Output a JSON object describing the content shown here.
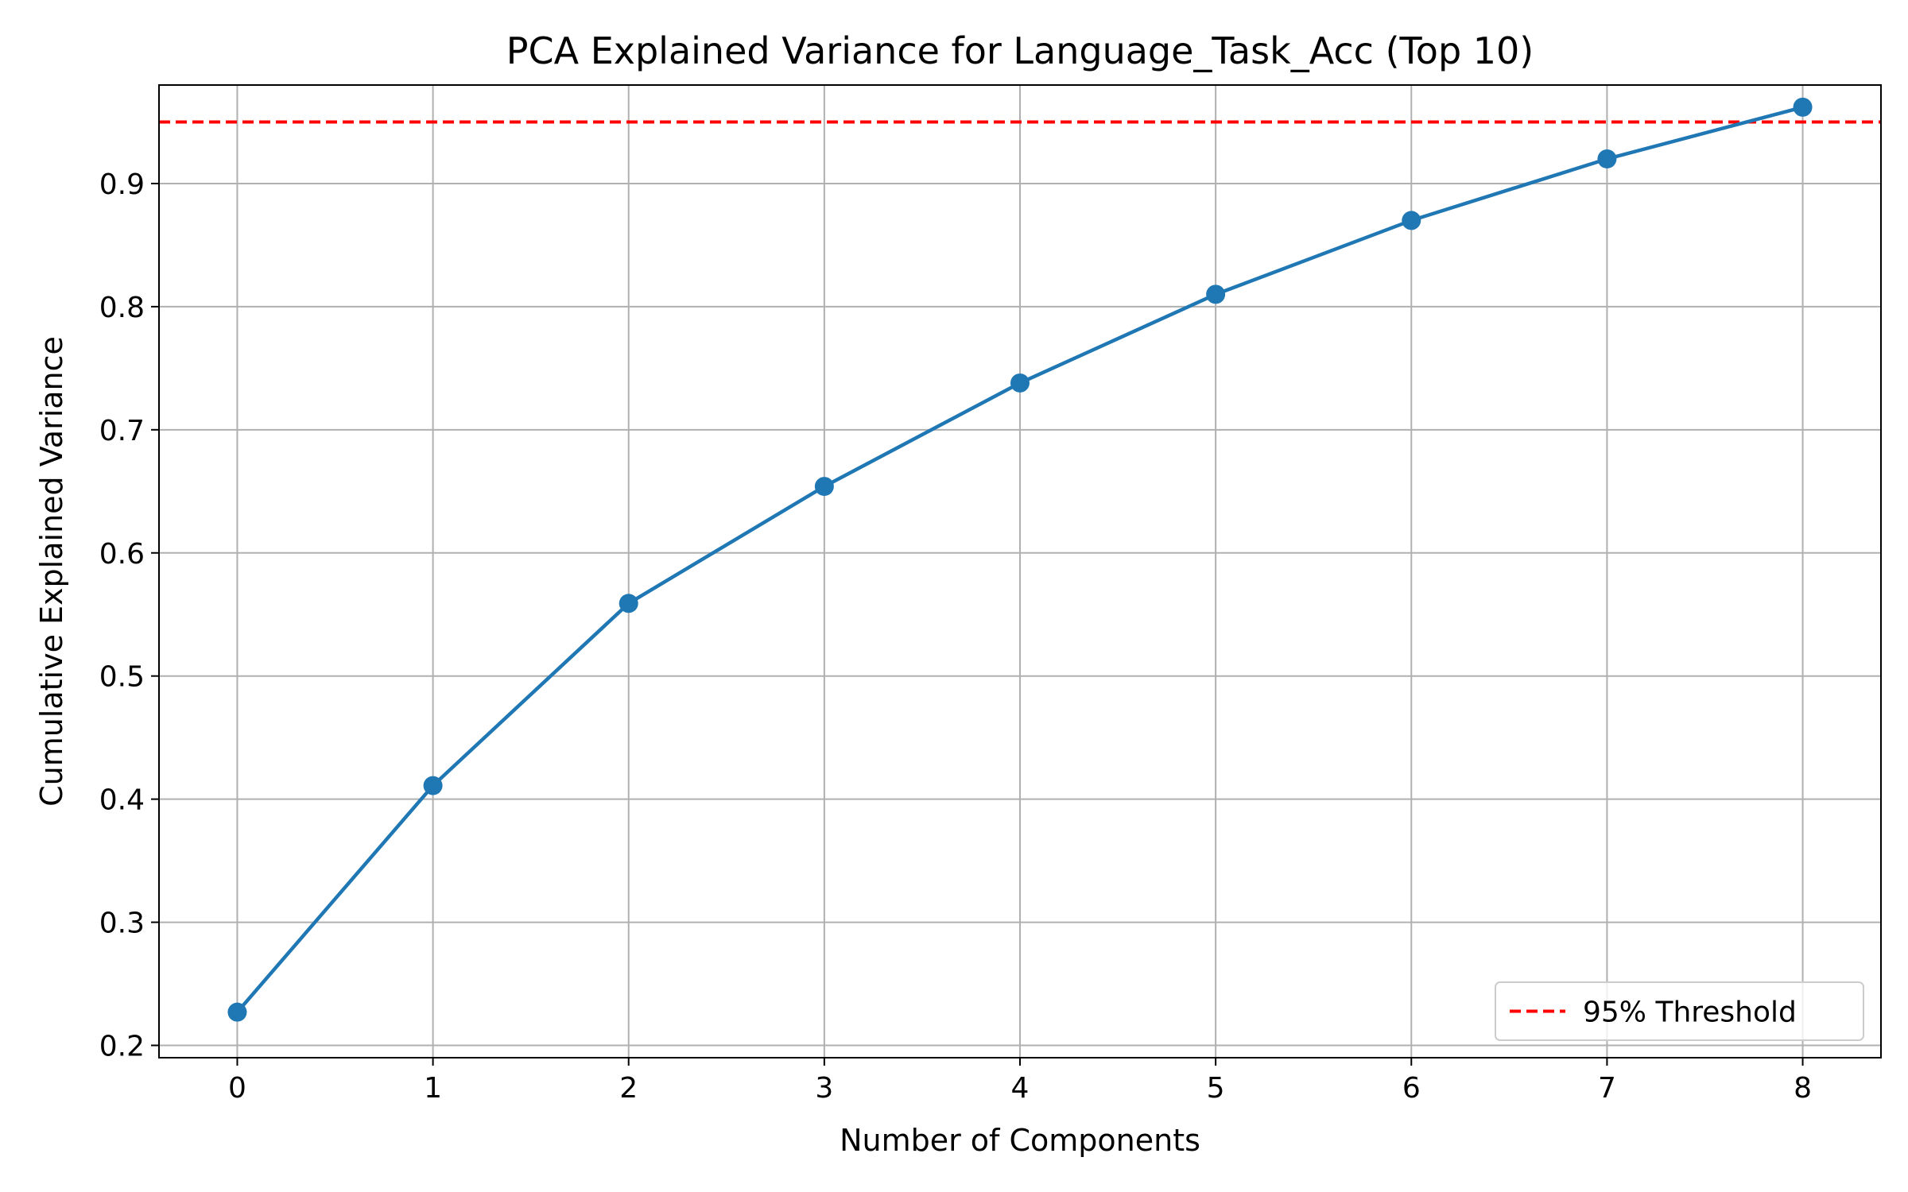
{
  "chart_data": {
    "type": "line",
    "title": "PCA Explained Variance for Language_Task_Acc (Top 10)",
    "xlabel": "Number of Components",
    "ylabel": "Cumulative Explained Variance",
    "x": [
      0,
      1,
      2,
      3,
      4,
      5,
      6,
      7,
      8
    ],
    "xlim": [
      -0.4,
      8.4
    ],
    "ylim": [
      0.19,
      0.98
    ],
    "xticks": [
      "0",
      "1",
      "2",
      "3",
      "4",
      "5",
      "6",
      "7",
      "8"
    ],
    "yticks": [
      "0.2",
      "0.3",
      "0.4",
      "0.5",
      "0.6",
      "0.7",
      "0.8",
      "0.9"
    ],
    "grid": true,
    "series": [
      {
        "values": [
          0.227,
          0.411,
          0.559,
          0.654,
          0.738,
          0.81,
          0.87,
          0.92,
          0.962
        ],
        "color": "#1f77b4",
        "marker": "circle"
      }
    ],
    "reference_lines": [
      {
        "orientation": "horizontal",
        "y": 0.95,
        "label": "95% Threshold",
        "color": "#ff0000",
        "style": "dashed"
      }
    ],
    "legend": {
      "position": "lower-right",
      "entries": [
        {
          "label": "95% Threshold",
          "color": "#ff0000",
          "style": "dashed"
        }
      ]
    }
  }
}
